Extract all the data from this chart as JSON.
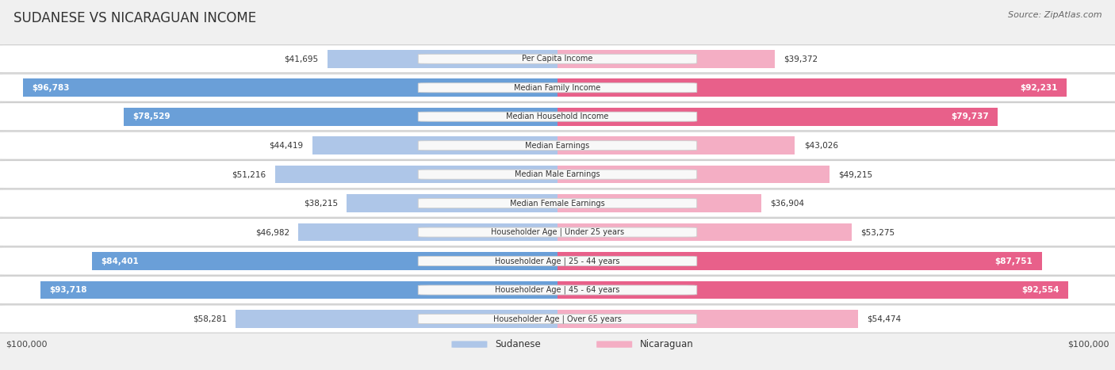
{
  "title": "SUDANESE VS NICARAGUAN INCOME",
  "source": "Source: ZipAtlas.com",
  "categories": [
    "Per Capita Income",
    "Median Family Income",
    "Median Household Income",
    "Median Earnings",
    "Median Male Earnings",
    "Median Female Earnings",
    "Householder Age | Under 25 years",
    "Householder Age | 25 - 44 years",
    "Householder Age | 45 - 64 years",
    "Householder Age | Over 65 years"
  ],
  "sudanese_values": [
    41695,
    96783,
    78529,
    44419,
    51216,
    38215,
    46982,
    84401,
    93718,
    58281
  ],
  "nicaraguan_values": [
    39372,
    92231,
    79737,
    43026,
    49215,
    36904,
    53275,
    87751,
    92554,
    54474
  ],
  "max_value": 100000,
  "sud_light_color": "#aec6e8",
  "sud_dark_color": "#6a9fd8",
  "nic_light_color": "#f4aec4",
  "nic_dark_color": "#e8608a",
  "row_bg_color": "#ffffff",
  "row_edge_color": "#cccccc",
  "bg_color": "#f0f0f0",
  "label_box_color": "#f8f8f8",
  "title_color": "#333333",
  "source_color": "#666666",
  "value_dark_color": "#333333",
  "value_light_color": "#ffffff",
  "legend_sud": "Sudanese",
  "legend_nic": "Nicaraguan",
  "sud_threshold": 70000,
  "nic_threshold": 70000,
  "title_fontsize": 12,
  "source_fontsize": 8,
  "cat_fontsize": 7,
  "val_fontsize": 7.5,
  "legend_fontsize": 8.5,
  "axis_label_fontsize": 8
}
